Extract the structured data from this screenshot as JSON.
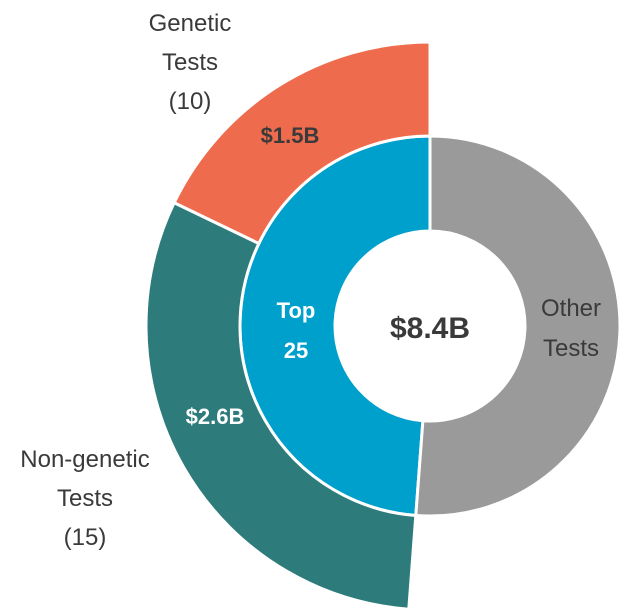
{
  "chart_data": {
    "type": "sunburst",
    "total": 8.4,
    "total_label": "$8.4B",
    "inner": {
      "categories": [
        "Top 25",
        "Other Tests"
      ],
      "values": [
        4.1,
        4.3
      ],
      "colors": [
        "#00a0cc",
        "#9a9a9a"
      ]
    },
    "outer": {
      "categories": [
        "Genetic Tests (10)",
        "Non-genetic Tests (15)"
      ],
      "values": [
        1.5,
        2.6
      ],
      "value_labels": [
        "$1.5B",
        "$2.6B"
      ],
      "colors": [
        "#ee6b4d",
        "#2e7b7b"
      ]
    }
  }
}
